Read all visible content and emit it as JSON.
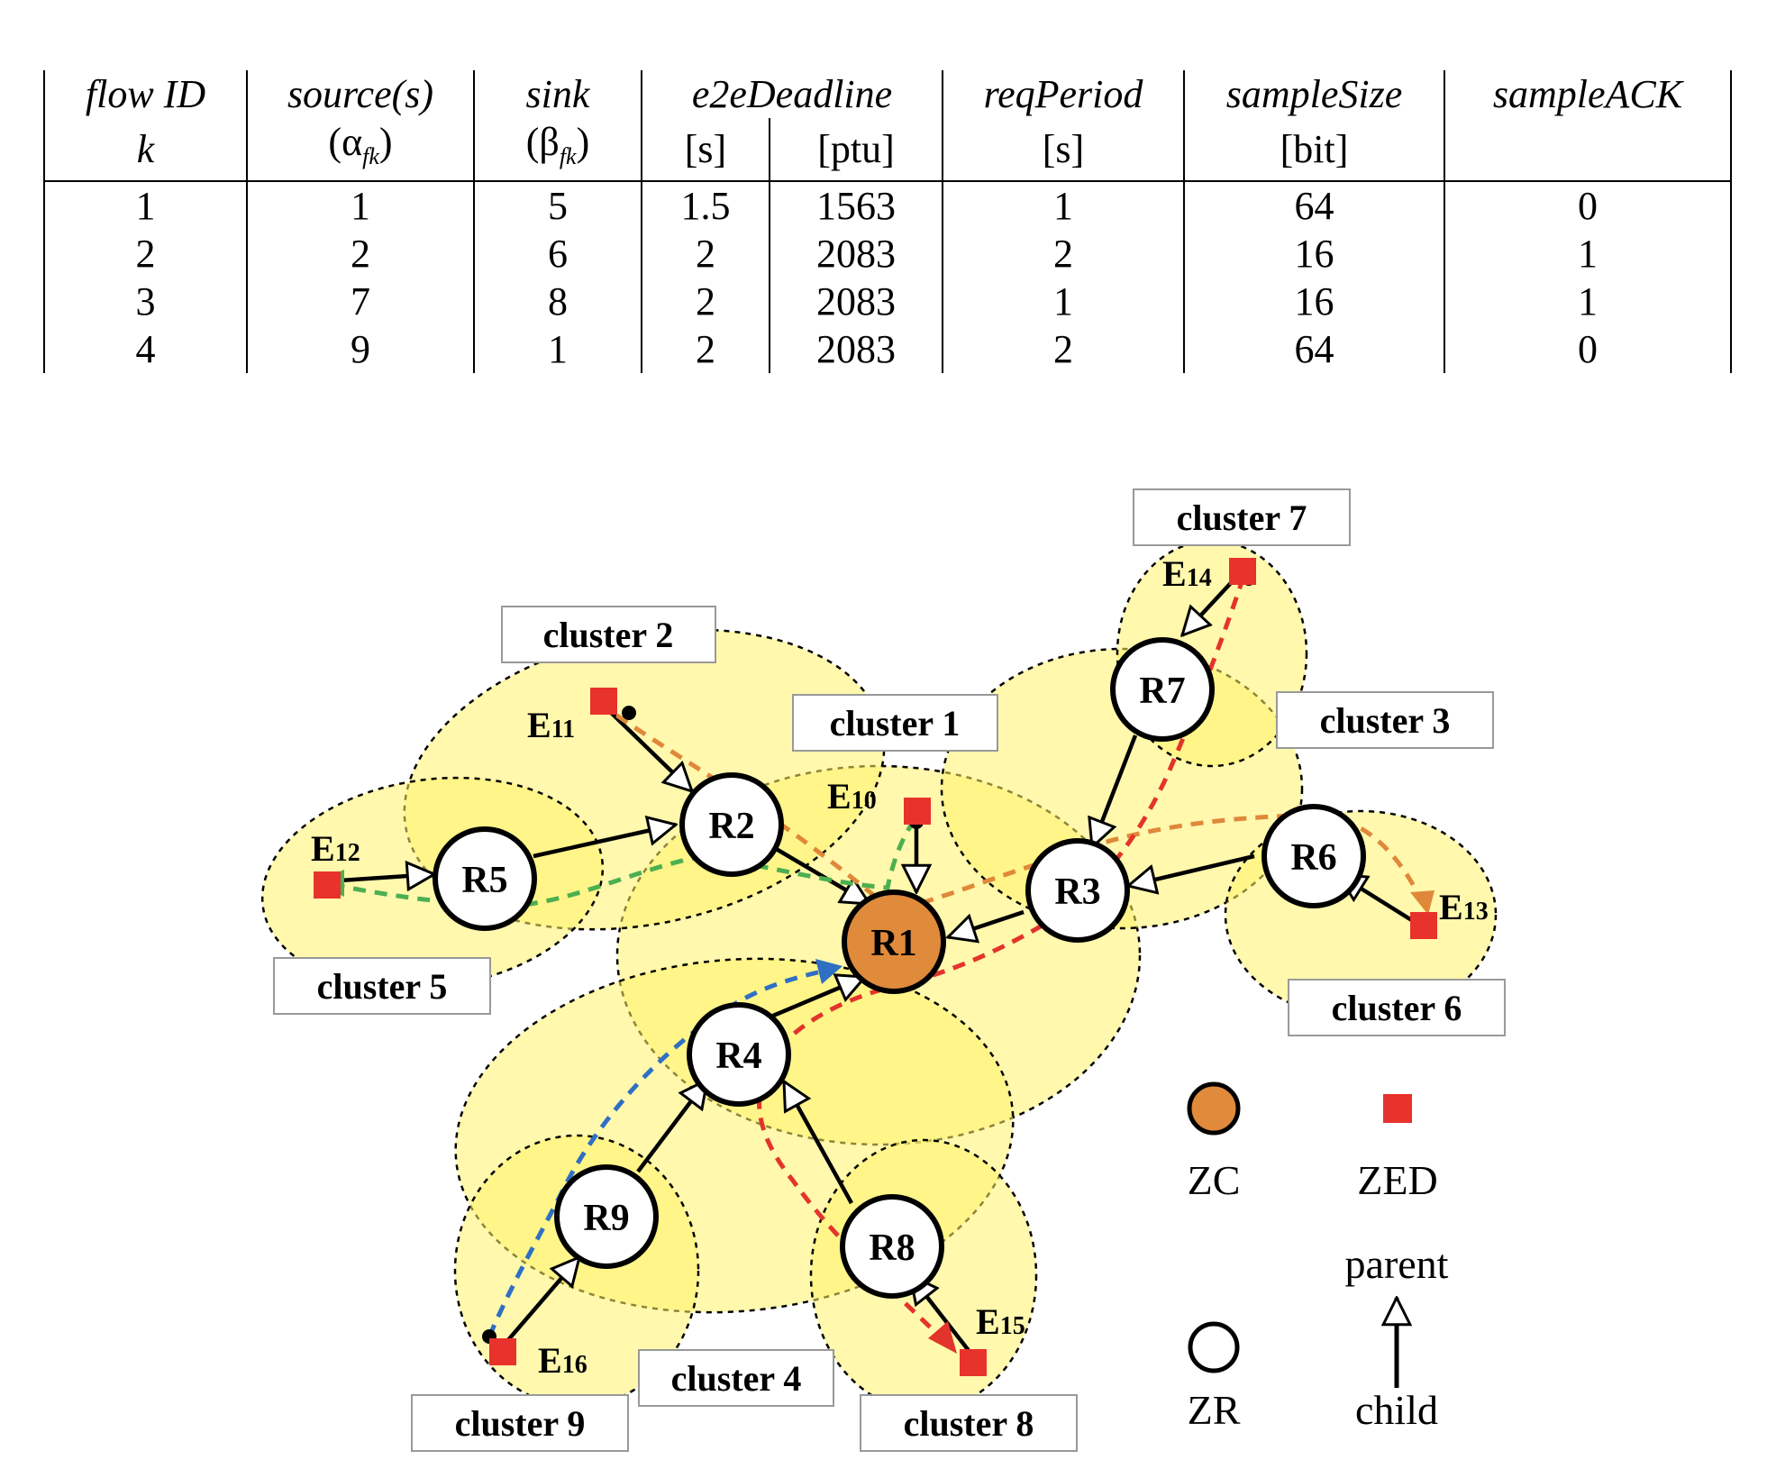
{
  "table": {
    "headers": {
      "flow_id": "flow ID",
      "flow_id_sym": "k",
      "source": "source(s)",
      "source_sym": "(α",
      "source_sub": "fk",
      "source_close": ")",
      "sink": "sink",
      "sink_sym": "(β",
      "sink_sub": "fk",
      "sink_close": ")",
      "deadline": "e2eDeadline",
      "deadline_s": "[s]",
      "deadline_ptu": "[ptu]",
      "req": "reqPeriod",
      "req_unit": "[s]",
      "size": "sampleSize",
      "size_unit": "[bit]",
      "ack": "sampleACK"
    },
    "rows": [
      {
        "k": "1",
        "source": "1",
        "sink": "5",
        "deadline_s": "1.5",
        "deadline_ptu": "1563",
        "req": "1",
        "size": "64",
        "ack": "0"
      },
      {
        "k": "2",
        "source": "2",
        "sink": "6",
        "deadline_s": "2",
        "deadline_ptu": "2083",
        "req": "2",
        "size": "16",
        "ack": "1"
      },
      {
        "k": "3",
        "source": "7",
        "sink": "8",
        "deadline_s": "2",
        "deadline_ptu": "2083",
        "req": "1",
        "size": "16",
        "ack": "1"
      },
      {
        "k": "4",
        "source": "9",
        "sink": "1",
        "deadline_s": "2",
        "deadline_ptu": "2083",
        "req": "2",
        "size": "64",
        "ack": "0"
      }
    ]
  },
  "diagram": {
    "colors": {
      "cluster_fill": "#fff36a",
      "zc_fill": "#e08a3c",
      "zed_fill": "#e8322c",
      "flow_1": "#4caf50",
      "flow_2": "#e0883a",
      "flow_3": "#e3342c",
      "flow_4": "#2f6fc4"
    },
    "cluster_labels": [
      "cluster 1",
      "cluster 2",
      "cluster 3",
      "cluster 4",
      "cluster 5",
      "cluster 6",
      "cluster 7",
      "cluster 8",
      "cluster 9"
    ],
    "routers": [
      "R1",
      "R2",
      "R3",
      "R4",
      "R5",
      "R6",
      "R7",
      "R8",
      "R9"
    ],
    "end_devices": [
      {
        "base": "E",
        "num": "10"
      },
      {
        "base": "E",
        "num": "11"
      },
      {
        "base": "E",
        "num": "12"
      },
      {
        "base": "E",
        "num": "13"
      },
      {
        "base": "E",
        "num": "14"
      },
      {
        "base": "E",
        "num": "15"
      },
      {
        "base": "E",
        "num": "16"
      }
    ],
    "legend": {
      "zc": "ZC",
      "zed": "ZED",
      "zr": "ZR",
      "parent": "parent",
      "child": "child"
    }
  }
}
